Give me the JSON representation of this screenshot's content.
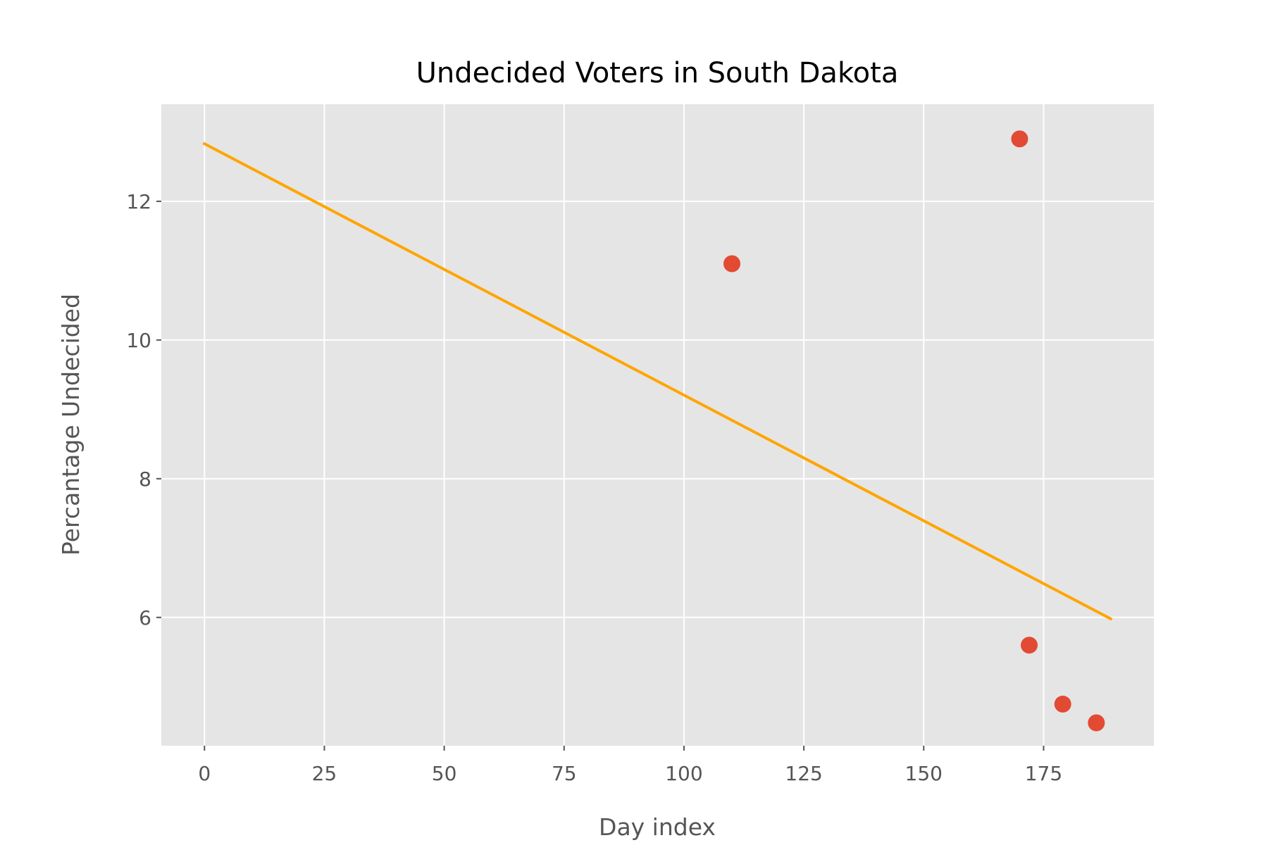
{
  "chart_data": {
    "type": "scatter",
    "title": "Undecided Voters in South Dakota",
    "xlabel": "Day index",
    "ylabel": "Percantage Undecided",
    "xlim": [
      -9,
      198
    ],
    "ylim": [
      4.15,
      13.4
    ],
    "xticks": [
      0,
      25,
      50,
      75,
      100,
      125,
      150,
      175
    ],
    "yticks": [
      6,
      8,
      10,
      12
    ],
    "grid": true,
    "points": [
      {
        "x": 110,
        "y": 11.1
      },
      {
        "x": 170,
        "y": 12.9
      },
      {
        "x": 172,
        "y": 5.6
      },
      {
        "x": 179,
        "y": 4.75
      },
      {
        "x": 186,
        "y": 4.48
      }
    ],
    "trend_line": {
      "x": [
        0,
        189
      ],
      "y": [
        12.83,
        5.98
      ]
    },
    "colors": {
      "background": "#e5e5e5",
      "grid": "#ffffff",
      "points": "#e24a33",
      "trend_line": "#ffa500"
    }
  }
}
